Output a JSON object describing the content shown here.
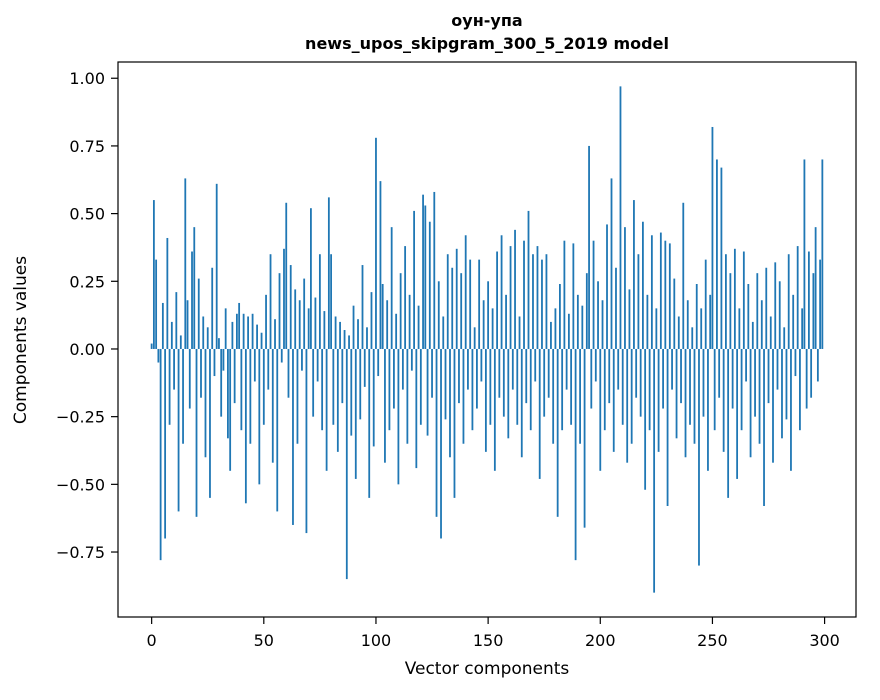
{
  "chart_data": {
    "type": "bar",
    "title_line1": "оун-упа",
    "title_line2": "news_upos_skipgram_300_5_2019 model",
    "xlabel": "Vector components",
    "ylabel": "Components values",
    "color": "#1f77b4",
    "xlim": [
      -15,
      314
    ],
    "ylim": [
      -0.99,
      1.06
    ],
    "grid": false,
    "legend": "none",
    "xtick_values": [
      0,
      50,
      100,
      150,
      200,
      250,
      300
    ],
    "xtick_labels": [
      "0",
      "50",
      "100",
      "150",
      "200",
      "250",
      "300"
    ],
    "ytick_values": [
      1.0,
      0.75,
      0.5,
      0.25,
      0.0,
      -0.25,
      -0.5,
      -0.75
    ],
    "ytick_labels": [
      "1.00",
      "0.75",
      "0.50",
      "0.25",
      "0.00",
      "−0.25",
      "−0.50",
      "−0.75"
    ],
    "x_start": 0,
    "values": [
      0.02,
      0.55,
      0.33,
      -0.05,
      -0.78,
      0.17,
      -0.7,
      0.41,
      -0.28,
      0.1,
      -0.15,
      0.21,
      -0.6,
      0.05,
      -0.35,
      0.63,
      0.18,
      -0.22,
      0.36,
      0.45,
      -0.62,
      0.26,
      -0.18,
      0.12,
      -0.4,
      0.08,
      -0.55,
      0.3,
      -0.1,
      0.61,
      0.04,
      -0.25,
      -0.08,
      0.15,
      -0.33,
      -0.45,
      0.1,
      -0.2,
      0.13,
      0.17,
      -0.3,
      0.13,
      -0.57,
      0.12,
      -0.35,
      0.13,
      -0.12,
      0.09,
      -0.5,
      0.06,
      -0.28,
      0.2,
      -0.15,
      0.35,
      -0.42,
      0.11,
      -0.6,
      0.28,
      -0.05,
      0.37,
      0.54,
      -0.18,
      0.31,
      -0.65,
      0.22,
      -0.35,
      0.18,
      -0.08,
      0.26,
      -0.68,
      0.15,
      0.52,
      -0.25,
      0.19,
      -0.12,
      0.35,
      -0.3,
      0.14,
      -0.45,
      0.56,
      0.35,
      -0.28,
      0.12,
      -0.38,
      0.1,
      -0.2,
      0.07,
      -0.85,
      0.05,
      -0.32,
      0.16,
      -0.48,
      0.11,
      -0.26,
      0.31,
      -0.14,
      0.08,
      -0.55,
      0.21,
      -0.36,
      0.78,
      -0.1,
      0.62,
      0.24,
      -0.42,
      0.18,
      -0.3,
      0.45,
      -0.22,
      0.13,
      -0.5,
      0.28,
      -0.15,
      0.38,
      -0.35,
      0.2,
      -0.08,
      0.51,
      -0.44,
      0.16,
      -0.28,
      0.57,
      0.53,
      -0.32,
      0.47,
      -0.18,
      0.58,
      -0.62,
      0.25,
      -0.7,
      0.12,
      -0.26,
      0.35,
      -0.4,
      0.3,
      -0.55,
      0.37,
      -0.2,
      0.28,
      -0.35,
      0.42,
      -0.15,
      0.33,
      -0.3,
      0.08,
      -0.22,
      0.33,
      -0.12,
      0.18,
      -0.38,
      0.25,
      -0.28,
      0.15,
      -0.45,
      0.36,
      -0.18,
      0.42,
      -0.25,
      0.2,
      -0.33,
      0.38,
      -0.15,
      0.44,
      -0.28,
      0.12,
      -0.4,
      0.4,
      -0.2,
      0.51,
      -0.3,
      0.35,
      -0.12,
      0.38,
      -0.48,
      0.33,
      -0.25,
      0.35,
      -0.18,
      0.1,
      -0.35,
      0.15,
      -0.62,
      0.24,
      -0.3,
      0.4,
      -0.15,
      0.13,
      -0.28,
      0.39,
      -0.78,
      0.2,
      -0.35,
      0.16,
      -0.66,
      0.28,
      0.75,
      -0.22,
      0.4,
      -0.12,
      0.25,
      -0.45,
      0.18,
      -0.3,
      0.46,
      -0.2,
      0.63,
      -0.38,
      0.3,
      -0.15,
      0.97,
      -0.28,
      0.45,
      -0.42,
      0.22,
      -0.35,
      0.55,
      -0.18,
      0.35,
      -0.25,
      0.47,
      -0.52,
      0.2,
      -0.3,
      0.42,
      -0.9,
      0.15,
      -0.38,
      0.43,
      -0.22,
      0.4,
      -0.58,
      0.39,
      -0.15,
      0.26,
      -0.33,
      0.12,
      -0.2,
      0.54,
      -0.4,
      0.18,
      -0.28,
      0.08,
      -0.35,
      0.24,
      -0.8,
      0.15,
      -0.25,
      0.33,
      -0.45,
      0.2,
      0.82,
      -0.3,
      0.7,
      -0.18,
      0.67,
      -0.38,
      0.35,
      -0.55,
      0.28,
      -0.22,
      0.37,
      -0.48,
      0.15,
      -0.3,
      0.36,
      -0.12,
      0.24,
      -0.4,
      0.1,
      -0.25,
      0.28,
      -0.35,
      0.18,
      -0.58,
      0.3,
      -0.2,
      0.12,
      -0.42,
      0.32,
      -0.15,
      0.25,
      -0.33,
      0.08,
      -0.26,
      0.35,
      -0.45,
      0.2,
      -0.1,
      0.38,
      -0.3,
      0.15,
      0.7,
      -0.22,
      0.36,
      -0.18,
      0.28,
      0.45,
      -0.12,
      0.33,
      0.7
    ]
  }
}
